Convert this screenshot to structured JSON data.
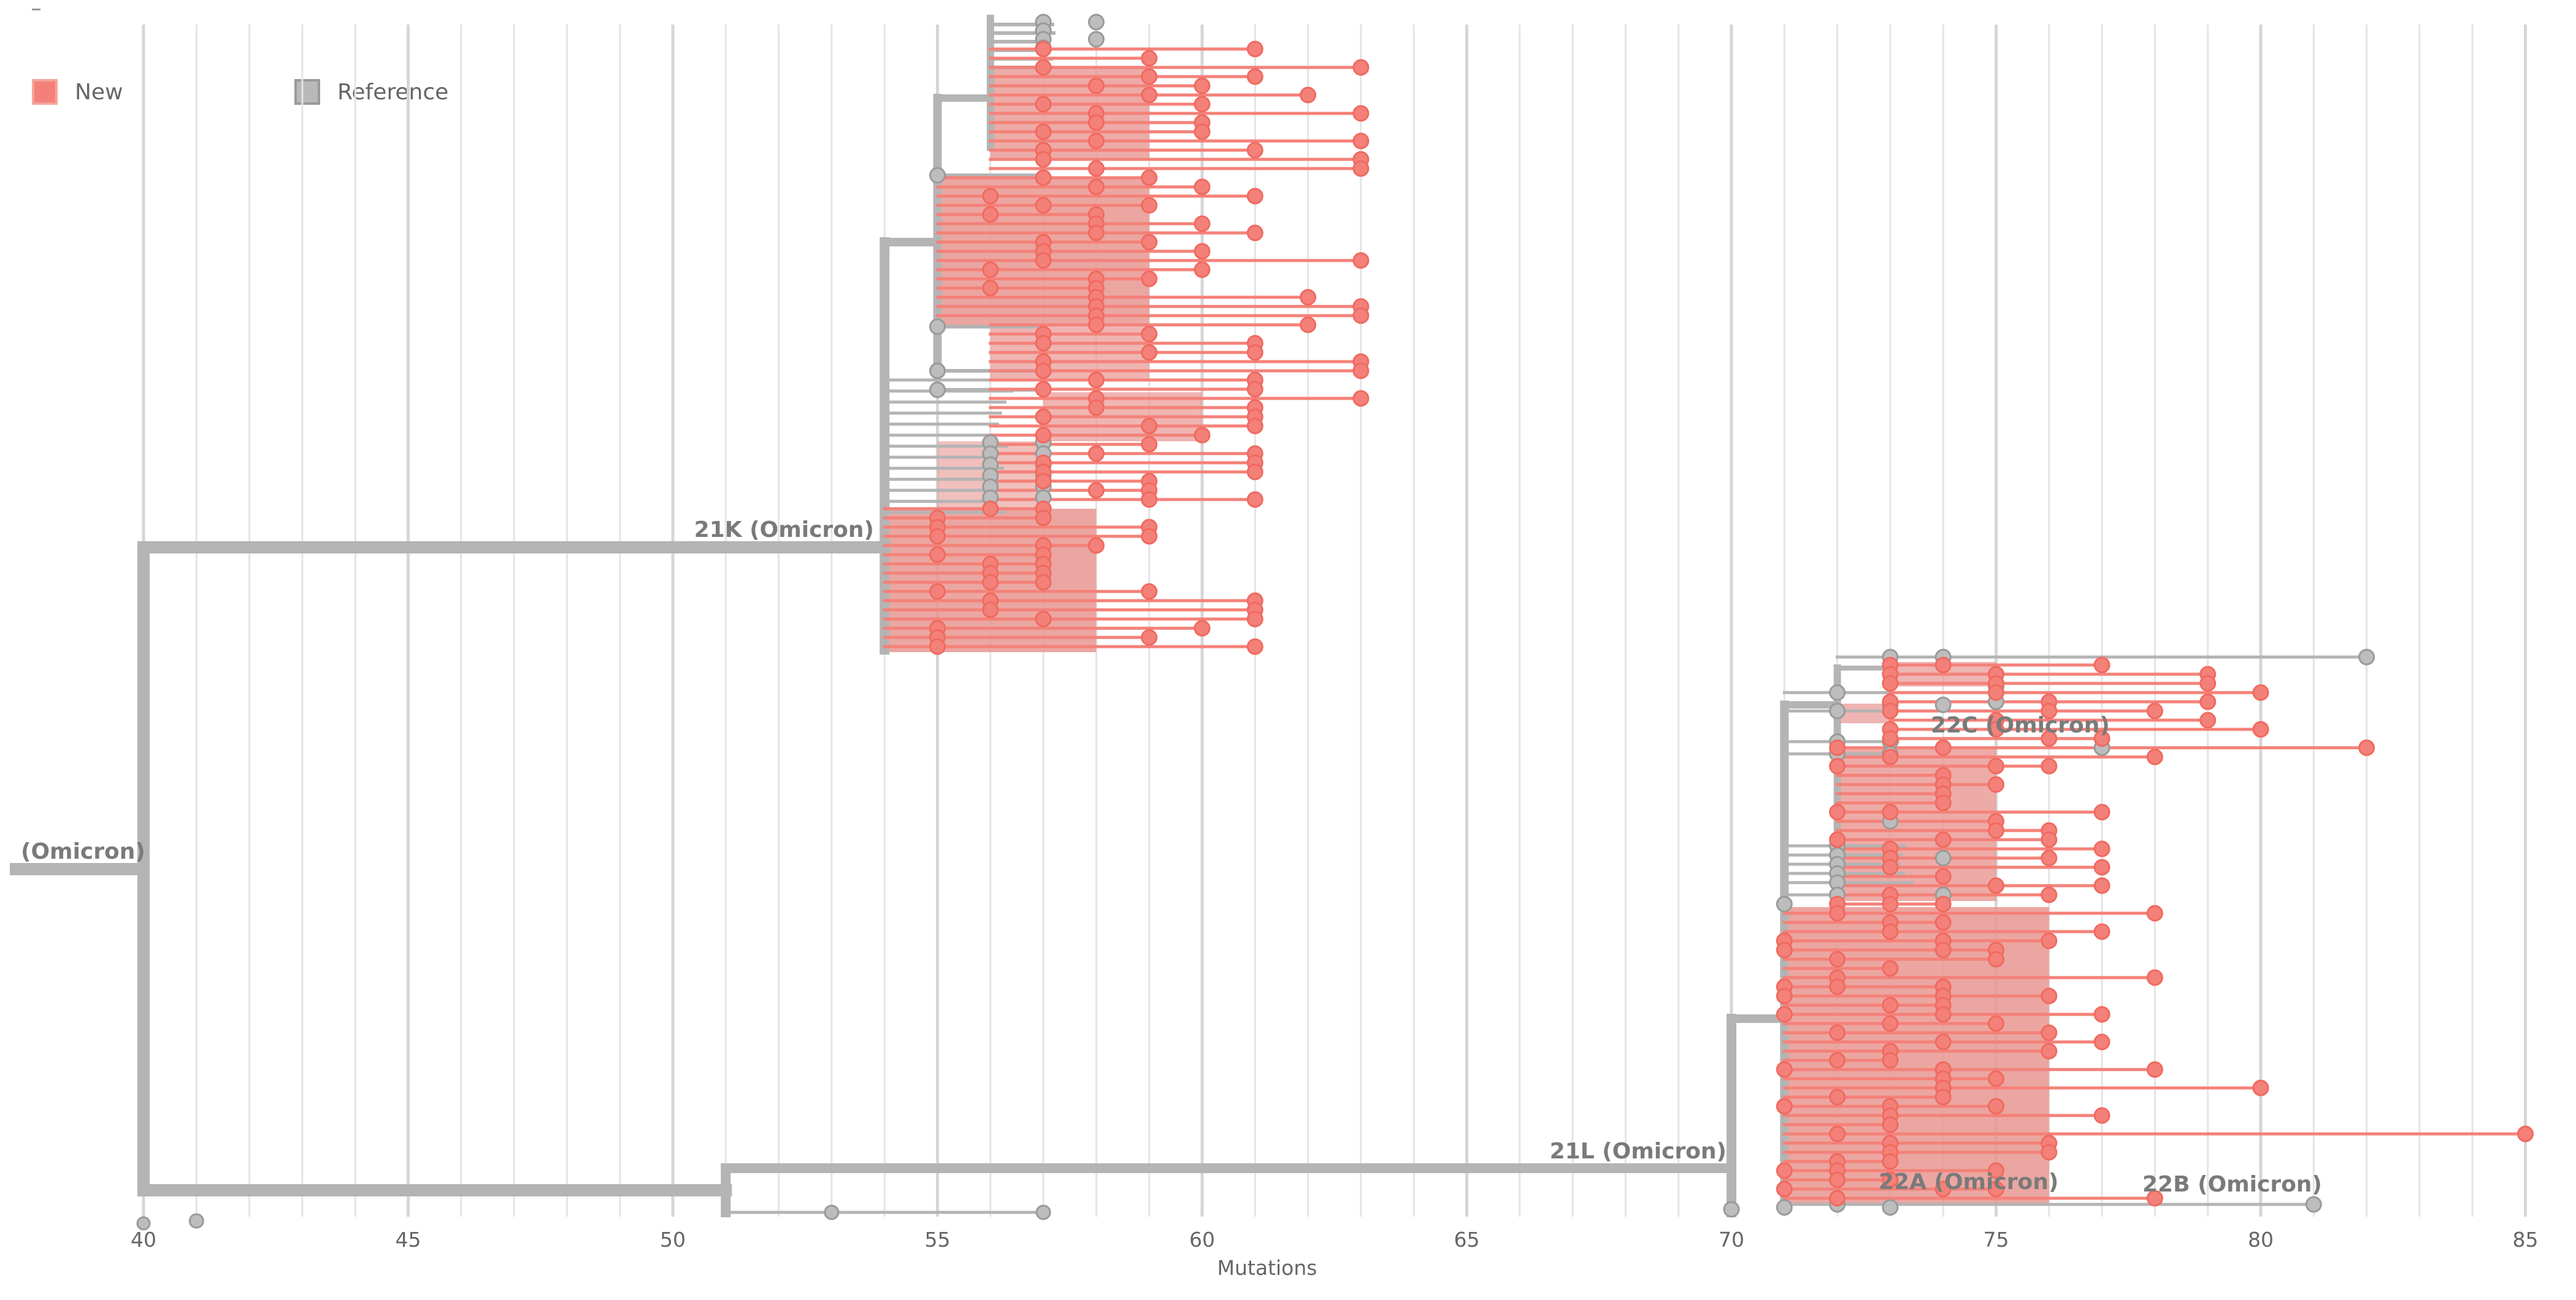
{
  "legend": {
    "new_label": "New",
    "reference_label": "Reference",
    "new_color": "#f48179",
    "reference_color": "#b9b9b9"
  },
  "axis": {
    "title": "Mutations",
    "range": [
      39,
      86
    ],
    "ticks": [
      "40",
      "45",
      "50",
      "55",
      "60",
      "65",
      "70",
      "75",
      "80",
      "85"
    ]
  },
  "clades": {
    "root": "(Omicron)",
    "k21": "21K (Omicron)",
    "l21": "21L (Omicron)",
    "c22": "22C (Omicron)",
    "a22": "22A (Omicron)",
    "b22": "22B (Omicron)"
  },
  "colors": {
    "branch": "#b4b4b4",
    "new": "#f48179",
    "new_fill": "#e89691",
    "reference": "#bdbdbd",
    "grid": "#e4e4e4",
    "label": "#7a7a7a"
  }
}
